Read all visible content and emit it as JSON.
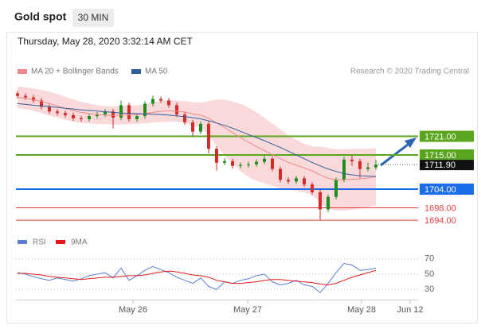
{
  "header": {
    "title": "Gold spot",
    "interval": "30 MIN",
    "timestamp": "Thursday, May 28, 2020 3:32:14 AM CET"
  },
  "chart_data": [
    {
      "type": "candlestick",
      "source": "Research © 2020 Trading Central",
      "up_color": "#1e8c1e",
      "down_color": "#d42a2a",
      "open": [
        1734.8,
        1734.0,
        1733.5,
        1732.5,
        1730.5,
        1729.0,
        1728.5,
        1727.8,
        1726.8,
        1726.5,
        1727.5,
        1728.0,
        1729.0,
        1727.0,
        1731.0,
        1726.5,
        1727.5,
        1731.5,
        1733.0,
        1732.5,
        1731.0,
        1728.0,
        1725.5,
        1722.5,
        1725.0,
        1717.0,
        1712.5,
        1713.0,
        1711.5,
        1711.8,
        1712.0,
        1712.8,
        1713.8,
        1710.5,
        1707.0,
        1706.5,
        1707.5,
        1705.5,
        1703.0,
        1697.5,
        1701.5,
        1707.0,
        1713.5,
        1713.0,
        1710.5,
        1711.0
      ],
      "high": [
        1735.6,
        1734.8,
        1734.3,
        1733.3,
        1731.3,
        1729.8,
        1729.3,
        1728.6,
        1727.6,
        1728.3,
        1728.8,
        1729.8,
        1729.8,
        1732.5,
        1731.8,
        1728.3,
        1732.3,
        1734.0,
        1733.8,
        1733.3,
        1731.8,
        1728.8,
        1726.3,
        1725.8,
        1725.8,
        1717.8,
        1714.0,
        1713.8,
        1712.6,
        1712.8,
        1713.6,
        1715.0,
        1714.6,
        1711.3,
        1707.8,
        1708.3,
        1708.3,
        1706.3,
        1703.8,
        1702.3,
        1707.8,
        1714.5,
        1714.8,
        1713.8,
        1712.5,
        1713.5
      ],
      "low": [
        1733.2,
        1732.7,
        1731.7,
        1729.7,
        1728.2,
        1727.7,
        1727.0,
        1726.0,
        1725.7,
        1725.7,
        1726.7,
        1727.2,
        1723.5,
        1726.2,
        1725.7,
        1725.7,
        1726.7,
        1730.7,
        1731.7,
        1730.2,
        1727.2,
        1724.7,
        1721.0,
        1721.7,
        1715.5,
        1710.0,
        1711.7,
        1710.7,
        1710.7,
        1711.0,
        1711.2,
        1712.0,
        1709.7,
        1706.2,
        1705.7,
        1705.7,
        1704.7,
        1702.2,
        1694.0,
        1696.7,
        1700.7,
        1706.2,
        1711.5,
        1707.5,
        1709.7,
        1710.2
      ],
      "close": [
        1734.0,
        1733.5,
        1732.5,
        1730.5,
        1729.0,
        1728.5,
        1727.8,
        1726.8,
        1726.5,
        1727.5,
        1728.0,
        1729.0,
        1727.0,
        1731.0,
        1726.5,
        1727.5,
        1731.5,
        1733.0,
        1732.5,
        1731.0,
        1728.0,
        1725.5,
        1722.5,
        1725.0,
        1717.0,
        1712.5,
        1713.0,
        1711.5,
        1711.8,
        1712.0,
        1712.8,
        1713.8,
        1710.5,
        1707.0,
        1706.5,
        1707.5,
        1705.5,
        1703.0,
        1697.5,
        1701.5,
        1707.0,
        1713.5,
        1713.0,
        1710.5,
        1711.0,
        1711.9
      ],
      "series": [
        {
          "name": "MA 20 + Bollinger Bands",
          "color": "#f08a8a",
          "band_color": "#f7c9c9",
          "values": [
            1733.5,
            1733.2,
            1732.8,
            1732.2,
            1731.5,
            1730.8,
            1730.0,
            1729.3,
            1728.7,
            1728.3,
            1728.0,
            1727.8,
            1727.7,
            1727.8,
            1727.9,
            1728.0,
            1728.3,
            1728.7,
            1729.0,
            1729.2,
            1729.1,
            1728.8,
            1728.2,
            1727.8,
            1726.8,
            1725.3,
            1723.8,
            1722.2,
            1720.6,
            1719.1,
            1717.7,
            1716.4,
            1715.1,
            1713.8,
            1712.6,
            1711.7,
            1710.8,
            1709.9,
            1708.6,
            1707.5,
            1707.0,
            1707.0,
            1707.2,
            1707.3,
            1707.6,
            1708.0
          ],
          "upper": [
            1737.0,
            1736.7,
            1736.4,
            1735.9,
            1735.3,
            1734.6,
            1733.7,
            1732.9,
            1732.1,
            1731.5,
            1731.0,
            1730.7,
            1730.6,
            1730.8,
            1730.9,
            1731.0,
            1731.4,
            1732.0,
            1732.4,
            1732.7,
            1732.5,
            1732.3,
            1732.0,
            1731.8,
            1732.3,
            1732.8,
            1732.8,
            1732.2,
            1731.4,
            1730.3,
            1728.7,
            1726.9,
            1725.1,
            1723.3,
            1721.4,
            1719.9,
            1718.6,
            1717.7,
            1717.6,
            1717.3,
            1716.8,
            1716.9,
            1717.0,
            1716.9,
            1717.0,
            1717.2
          ],
          "lower": [
            1730.0,
            1729.7,
            1729.2,
            1728.5,
            1727.7,
            1727.0,
            1726.3,
            1725.7,
            1725.3,
            1725.1,
            1725.0,
            1724.9,
            1724.8,
            1724.8,
            1724.9,
            1725.0,
            1725.2,
            1725.4,
            1725.6,
            1725.7,
            1725.7,
            1725.3,
            1724.4,
            1723.8,
            1721.3,
            1717.8,
            1714.8,
            1712.2,
            1709.8,
            1707.9,
            1706.7,
            1705.9,
            1705.1,
            1704.3,
            1703.8,
            1703.5,
            1703.0,
            1702.1,
            1699.6,
            1697.7,
            1697.2,
            1697.1,
            1697.4,
            1697.7,
            1698.2,
            1698.8
          ]
        },
        {
          "name": "MA 50",
          "color": "#2f5f9f",
          "values": [
            1731.5,
            1731.3,
            1731.0,
            1730.8,
            1730.5,
            1730.3,
            1730.0,
            1729.8,
            1729.5,
            1729.3,
            1729.1,
            1728.9,
            1728.7,
            1728.5,
            1728.4,
            1728.3,
            1728.2,
            1728.1,
            1728.0,
            1727.8,
            1727.6,
            1727.3,
            1727.0,
            1726.6,
            1726.0,
            1725.3,
            1724.5,
            1723.6,
            1722.6,
            1721.6,
            1720.6,
            1719.6,
            1718.5,
            1717.4,
            1716.2,
            1715.0,
            1713.8,
            1712.6,
            1711.5,
            1710.5,
            1709.7,
            1709.0,
            1708.6,
            1708.3,
            1708.2,
            1708.1
          ]
        }
      ],
      "levels": [
        {
          "value": 1721,
          "label": "1721.00",
          "color": "#5aa51e",
          "style": "box"
        },
        {
          "value": 1715,
          "label": "1715.00",
          "color": "#5aa51e",
          "style": "box"
        },
        {
          "value": 1704,
          "label": "1704.00",
          "color": "#1a6ce8",
          "style": "box"
        },
        {
          "value": 1698,
          "label": "1698.00",
          "color": "#e03c3c",
          "style": "text"
        },
        {
          "value": 1694,
          "label": "1694.00",
          "color": "#e03c3c",
          "style": "text"
        }
      ],
      "last": {
        "value": 1711.9,
        "label": "1711.90",
        "color": "#111111"
      },
      "xlim": [
        -0.2,
        50.3
      ],
      "ylim": [
        1692,
        1738
      ]
    },
    {
      "type": "line",
      "series": [
        {
          "name": "RSI",
          "color": "#5b7fd6",
          "values": [
            52,
            50,
            47,
            44,
            42,
            45,
            43,
            41,
            44,
            48,
            50,
            52,
            45,
            58,
            42,
            48,
            55,
            60,
            56,
            52,
            46,
            42,
            38,
            45,
            34,
            30,
            40,
            38,
            42,
            44,
            48,
            50,
            40,
            36,
            38,
            42,
            36,
            34,
            26,
            38,
            52,
            64,
            62,
            55,
            56,
            58
          ]
        },
        {
          "name": "9MA",
          "color": "#e31a1c",
          "values": [
            51,
            51,
            50,
            49,
            47,
            46,
            45,
            44,
            43,
            44,
            45,
            46,
            46,
            47,
            48,
            48,
            49,
            51,
            53,
            54,
            53,
            51,
            49,
            48,
            46,
            42,
            40,
            38,
            38,
            39,
            40,
            42,
            43,
            43,
            42,
            41,
            40,
            39,
            37,
            36,
            38,
            42,
            46,
            49,
            52,
            55
          ]
        }
      ],
      "ylim": [
        22,
        78
      ],
      "yticks": [
        70,
        50,
        30
      ],
      "xlim": [
        -0.2,
        50.3
      ],
      "xticks": [
        {
          "value": 14.5,
          "label": "May 26"
        },
        {
          "value": 28.9,
          "label": "May 27"
        },
        {
          "value": 43.2,
          "label": "May 28"
        },
        {
          "value": 49.3,
          "label": "Jun 12"
        }
      ]
    }
  ]
}
